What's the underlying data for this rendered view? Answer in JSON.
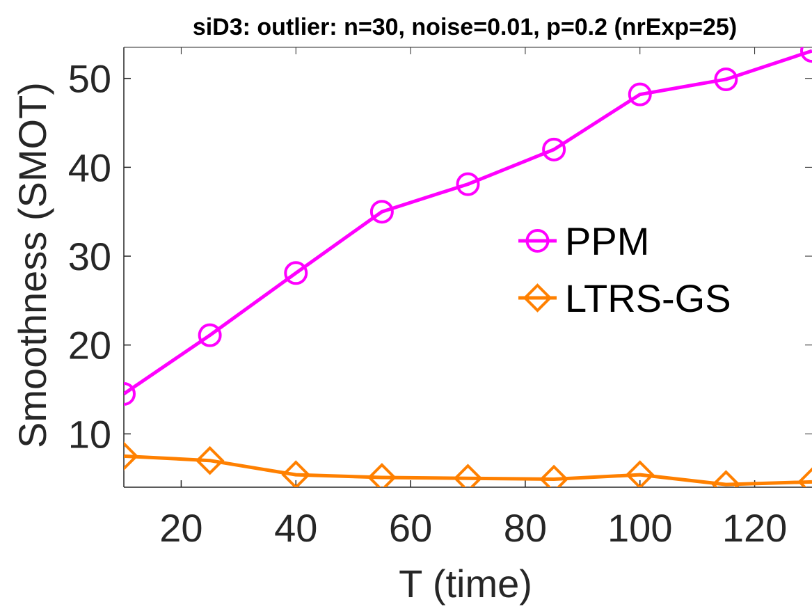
{
  "chart_data": {
    "type": "line",
    "title": "siD3: outlier: n=30, noise=0.01, p=0.2 (nrExp=25)",
    "xlabel": "T (time)",
    "ylabel": "Smoothness (SMOT)",
    "x": [
      10,
      25,
      40,
      55,
      70,
      85,
      100,
      115,
      130
    ],
    "xlim": [
      10,
      130
    ],
    "ylim": [
      4,
      53.5
    ],
    "xticks": [
      20,
      40,
      60,
      80,
      100,
      120
    ],
    "yticks": [
      10,
      20,
      30,
      40,
      50
    ],
    "grid": false,
    "legend_position": "center-right",
    "series": [
      {
        "name": "PPM",
        "color": "#ff00ff",
        "marker": "circle",
        "values": [
          14.5,
          21.1,
          28.1,
          35.0,
          38.1,
          42.0,
          48.2,
          49.9,
          53.1
        ]
      },
      {
        "name": "LTRS-GS",
        "color": "#ff8000",
        "marker": "diamond",
        "values": [
          7.5,
          7.0,
          5.4,
          5.1,
          5.0,
          4.9,
          5.4,
          4.3,
          4.6
        ]
      }
    ]
  }
}
